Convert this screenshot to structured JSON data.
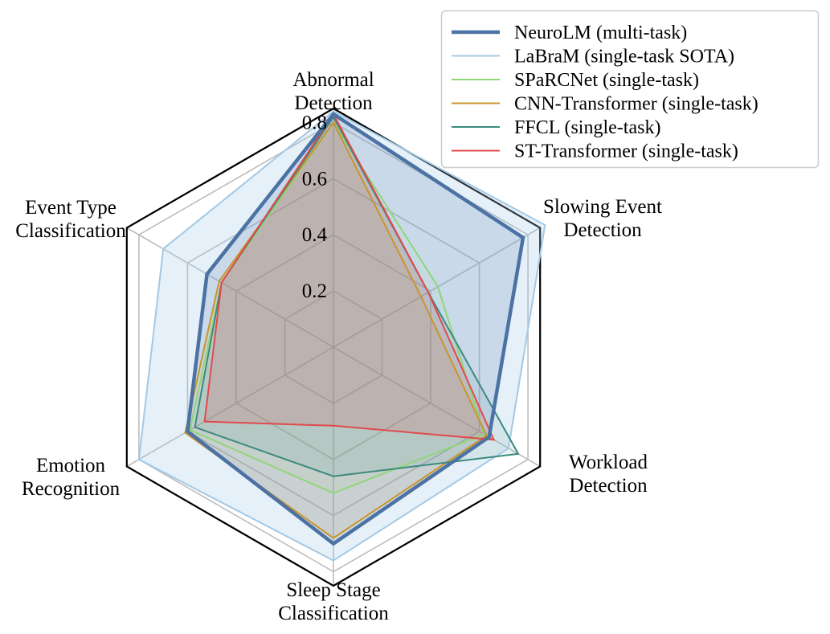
{
  "chart_data": {
    "type": "radar",
    "axes": [
      [
        "Abnormal",
        "Detection"
      ],
      [
        "Slowing Event",
        "Detection"
      ],
      [
        "Workload",
        "Detection"
      ],
      [
        "Sleep Stage",
        "Classification"
      ],
      [
        "Emotion",
        "Recognition"
      ],
      [
        "Event Type",
        "Classification"
      ]
    ],
    "rlim": [
      0,
      0.85
    ],
    "rticks": [
      0.2,
      0.4,
      0.6,
      0.8
    ],
    "rtick_labels": [
      "0.2",
      "0.4",
      "0.6",
      "0.8"
    ],
    "grid": true,
    "legend_position": "top-right",
    "series": [
      {
        "name": "NeuroLM (multi-task)",
        "color": "#4c72a4",
        "values": [
          0.83,
          0.78,
          0.64,
          0.7,
          0.6,
          0.52
        ],
        "fill_opacity": 0.18,
        "line_width": 4.5
      },
      {
        "name": "LaBraM (single-task SOTA)",
        "color": "#a3c9e6",
        "values": [
          0.84,
          0.87,
          0.72,
          0.76,
          0.8,
          0.7
        ],
        "fill_opacity": 0.28,
        "line_width": 2
      },
      {
        "name": "SPaRCNet (single-task)",
        "color": "#8fd678",
        "values": [
          0.8,
          0.43,
          0.62,
          0.52,
          0.59,
          0.46
        ],
        "fill_opacity": 0.06,
        "line_width": 2
      },
      {
        "name": "CNN-Transformer (single-task)",
        "color": "#c8952a",
        "values": [
          0.8,
          0.36,
          0.63,
          0.68,
          0.61,
          0.47
        ],
        "fill_opacity": 0.12,
        "line_width": 2
      },
      {
        "name": "FFCL (single-task)",
        "color": "#3d8a7f",
        "values": [
          0.82,
          0.39,
          0.76,
          0.46,
          0.57,
          0.46
        ],
        "fill_opacity": 0.1,
        "line_width": 2
      },
      {
        "name": "ST-Transformer (single-task)",
        "color": "#e04a4e",
        "values": [
          0.83,
          0.39,
          0.66,
          0.28,
          0.53,
          0.46
        ],
        "fill_opacity": 0.16,
        "line_width": 2
      }
    ]
  }
}
